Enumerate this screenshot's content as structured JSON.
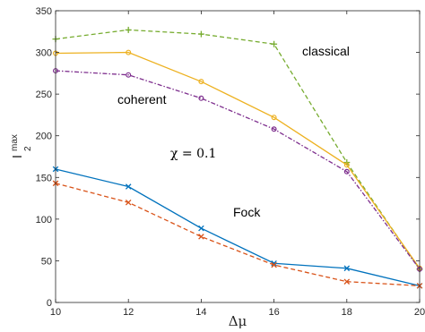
{
  "chart_data": {
    "type": "line",
    "xlabel": "Δμ",
    "ylabel": {
      "base": "I",
      "subscript": "2",
      "superscript": "max"
    },
    "xlim": [
      10,
      20
    ],
    "ylim": [
      0,
      350
    ],
    "xticks": [
      "10",
      "12",
      "14",
      "16",
      "18",
      "20"
    ],
    "yticks": [
      "0",
      "50",
      "100",
      "150",
      "200",
      "250",
      "300",
      "350"
    ],
    "grid": false,
    "annotations": {
      "classical": "classical",
      "coherent": "coherent",
      "chi": "χ = 0.1",
      "fock": "Fock"
    },
    "series": [
      {
        "key": "classical_dashed",
        "color": "#77ac30",
        "style": "dashed",
        "marker": "plus",
        "x": [
          10,
          12,
          14,
          16,
          18,
          20
        ],
        "y": [
          316,
          327,
          322,
          310,
          168,
          40
        ]
      },
      {
        "key": "coherent_solid",
        "color": "#edb120",
        "style": "solid",
        "marker": "circle",
        "x": [
          10,
          12,
          14,
          16,
          18,
          20
        ],
        "y": [
          299,
          300,
          265,
          222,
          165,
          41
        ]
      },
      {
        "key": "coherent_dashdot",
        "color": "#7e2f8e",
        "style": "dashdot",
        "marker": "circle",
        "x": [
          10,
          12,
          14,
          16,
          18,
          20
        ],
        "y": [
          278,
          273,
          245,
          208,
          157,
          40
        ]
      },
      {
        "key": "fock_solid",
        "color": "#0072bd",
        "style": "solid",
        "marker": "x",
        "x": [
          10,
          12,
          14,
          16,
          18,
          20
        ],
        "y": [
          160,
          139,
          89,
          47,
          41,
          20
        ]
      },
      {
        "key": "fock_dashed",
        "color": "#d95319",
        "style": "dashed",
        "marker": "x",
        "x": [
          10,
          12,
          14,
          16,
          18,
          20
        ],
        "y": [
          143,
          120,
          79,
          45,
          25,
          20
        ]
      }
    ]
  }
}
